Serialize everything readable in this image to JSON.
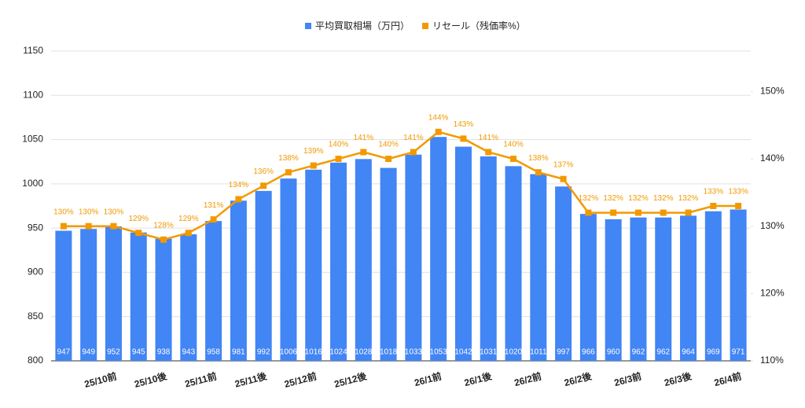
{
  "chart_data": {
    "type": "bar",
    "categories": [
      null,
      null,
      "25/10前",
      null,
      "25/10後",
      null,
      "25/11前",
      null,
      "25/11後",
      null,
      "25/12前",
      null,
      "25/12後",
      null,
      null,
      "26/1前",
      null,
      "26/1後",
      null,
      "26/2前",
      null,
      "26/2後",
      null,
      "26/3前",
      null,
      "26/3後",
      null,
      "26/4前"
    ],
    "series": [
      {
        "name": "平均買取相場（万円）",
        "type": "bar",
        "color": "#4285f4",
        "values": [
          947,
          949,
          952,
          945,
          938,
          943,
          958,
          981,
          992,
          1006,
          1016,
          1024,
          1028,
          1018,
          1033,
          1053,
          1042,
          1031,
          1020,
          1011,
          997,
          966,
          960,
          962,
          962,
          964,
          969,
          971
        ]
      },
      {
        "name": "リセール（残価率%）",
        "type": "line",
        "axis": "y2",
        "color": "#f29900",
        "values": [
          130,
          130,
          130,
          129,
          128,
          129,
          131,
          134,
          136,
          138,
          139,
          140,
          141,
          140,
          141,
          144,
          143,
          141,
          140,
          138,
          137,
          132,
          132,
          132,
          132,
          132,
          133,
          133
        ],
        "value_labels": [
          "130%",
          "130%",
          "130%",
          "129%",
          "128%",
          "129%",
          "131%",
          "134%",
          "136%",
          "138%",
          "139%",
          "140%",
          "141%",
          "140%",
          "141%",
          "144%",
          "143%",
          "141%",
          "140%",
          "138%",
          "137%",
          "132%",
          "132%",
          "132%",
          "132%",
          "132%",
          "133%",
          "133%"
        ]
      }
    ],
    "ylim": [
      800,
      1150
    ],
    "yticks": [
      800,
      850,
      900,
      950,
      1000,
      1050,
      1100,
      1150
    ],
    "y2lim": [
      110,
      156
    ],
    "y2ticks": [
      {
        "value": 110,
        "label": "110%"
      },
      {
        "value": 120,
        "label": "120%"
      },
      {
        "value": 130,
        "label": "130%"
      },
      {
        "value": 140,
        "label": "140%"
      },
      {
        "value": 150,
        "label": "150%"
      }
    ],
    "grid": true,
    "legend": "top"
  }
}
